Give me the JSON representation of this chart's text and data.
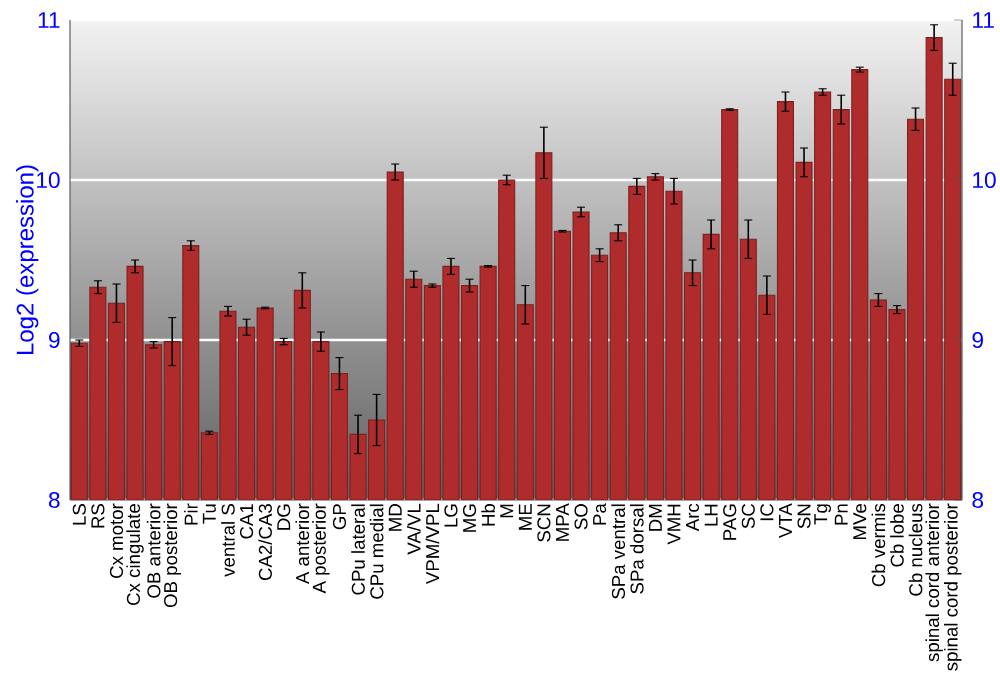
{
  "chart_data": {
    "type": "bar",
    "ylabel": "Log2 (expression)",
    "categories": [
      "LS",
      "RS",
      "Cx motor",
      "Cx cingulate",
      "OB anterior",
      "OB posterior",
      "Pir",
      "Tu",
      "ventral S",
      "CA1",
      "CA2/CA3",
      "DG",
      "A anterior",
      "A posterior",
      "GP",
      "CPu lateral",
      "CPu medial",
      "MD",
      "VA/VL",
      "VPM/VPL",
      "LG",
      "MG",
      "Hb",
      "M",
      "ME",
      "SCN",
      "MPA",
      "SO",
      "Pa",
      "SPa ventral",
      "SPa dorsal",
      "DM",
      "VMH",
      "Arc",
      "LH",
      "PAG",
      "SC",
      "IC",
      "VTA",
      "SN",
      "Tg",
      "Pn",
      "MVe",
      "Cb vermis",
      "Cb lobe",
      "Cb nucleus",
      "spinal cord anterior",
      "spinal cord posterior"
    ],
    "values": [
      8.98,
      9.33,
      9.23,
      9.46,
      8.97,
      8.99,
      9.59,
      8.42,
      9.18,
      9.08,
      9.2,
      8.99,
      9.31,
      8.99,
      8.79,
      8.41,
      8.5,
      10.05,
      9.38,
      9.34,
      9.46,
      9.34,
      9.46,
      10.0,
      9.22,
      10.17,
      9.68,
      9.8,
      9.53,
      9.67,
      9.96,
      10.02,
      9.93,
      9.42,
      9.66,
      10.44,
      9.63,
      9.28,
      10.49,
      10.11,
      10.55,
      10.44,
      10.69,
      9.25,
      9.19,
      10.38,
      10.89,
      10.63
    ],
    "errors": [
      0.02,
      0.04,
      0.12,
      0.04,
      0.02,
      0.15,
      0.03,
      0.01,
      0.03,
      0.05,
      0.005,
      0.02,
      0.11,
      0.06,
      0.1,
      0.12,
      0.16,
      0.05,
      0.05,
      0.01,
      0.05,
      0.04,
      0.005,
      0.03,
      0.12,
      0.16,
      0.005,
      0.03,
      0.04,
      0.05,
      0.05,
      0.02,
      0.08,
      0.08,
      0.09,
      0.005,
      0.12,
      0.12,
      0.06,
      0.09,
      0.02,
      0.09,
      0.015,
      0.04,
      0.025,
      0.07,
      0.08,
      0.1
    ],
    "color": "#b02c2c",
    "ylim": [
      8,
      11
    ],
    "yticks": [
      8,
      9,
      10,
      11
    ],
    "y2lim": [
      8,
      11
    ],
    "y2ticks": [
      8,
      9,
      10,
      11
    ],
    "grid": "y"
  }
}
